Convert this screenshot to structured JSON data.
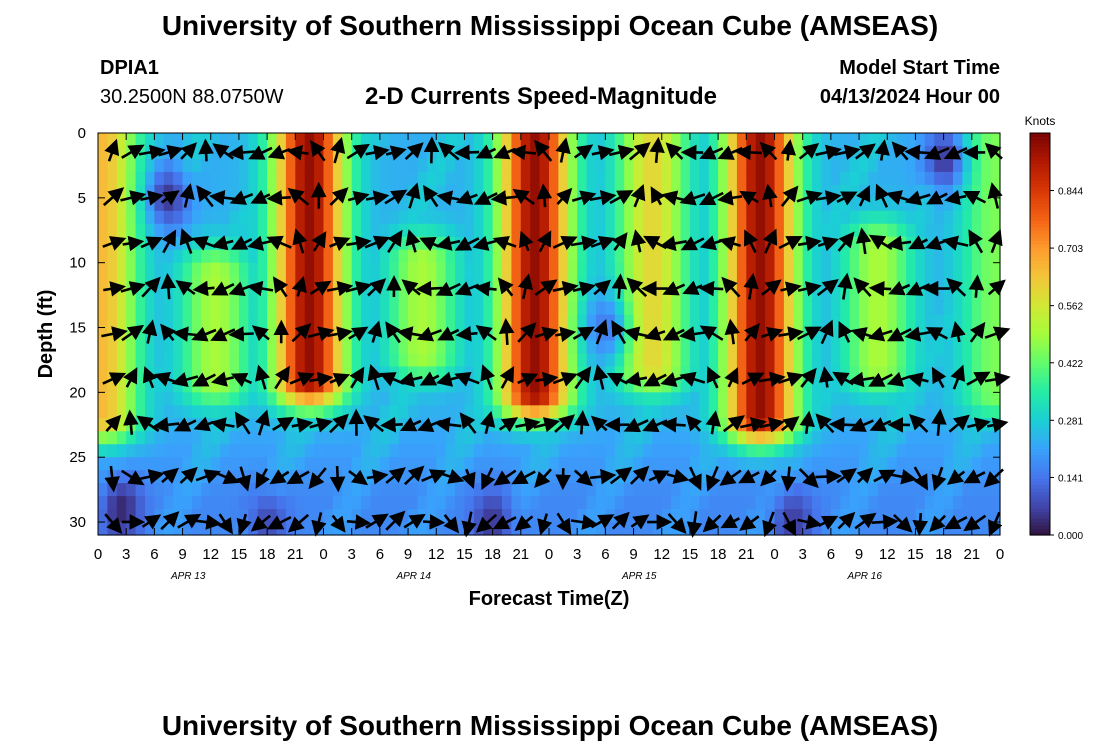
{
  "header": {
    "title": "University of Southern Mississippi Ocean Cube (AMSEAS)",
    "station_id": "DPIA1",
    "station_coords": "30.2500N  88.0750W",
    "plot_title": "2-D Currents Speed-Magnitude",
    "model_start_label": "Model Start Time",
    "model_start_value": "04/13/2024 Hour 00"
  },
  "footer": {
    "title": "University of Southern Mississippi Ocean Cube (AMSEAS)"
  },
  "chart_data": {
    "type": "heatmap",
    "title": "2-D Currents Speed-Magnitude",
    "xlabel": "Forecast Time(Z)",
    "ylabel": "Depth (ft)",
    "x_ticks": [
      "0",
      "3",
      "6",
      "9",
      "12",
      "15",
      "18",
      "21",
      "0",
      "3",
      "6",
      "9",
      "12",
      "15",
      "18",
      "21",
      "0",
      "3",
      "6",
      "9",
      "12",
      "15",
      "18",
      "21",
      "0",
      "3",
      "6",
      "9",
      "12",
      "15",
      "18",
      "21",
      "0"
    ],
    "x_hours": [
      0,
      3,
      6,
      9,
      12,
      15,
      18,
      21,
      24,
      27,
      30,
      33,
      36,
      39,
      42,
      45,
      48,
      51,
      54,
      57,
      60,
      63,
      66,
      69,
      72,
      75,
      78,
      81,
      84,
      87,
      90,
      93,
      96
    ],
    "xlim": [
      0,
      96
    ],
    "date_labels": [
      {
        "text": "APR 13",
        "hour": 9.6
      },
      {
        "text": "APR 14",
        "hour": 33.6
      },
      {
        "text": "APR 15",
        "hour": 57.6
      },
      {
        "text": "APR 16",
        "hour": 81.6
      }
    ],
    "y_ticks": [
      0,
      5,
      10,
      15,
      20,
      25,
      30
    ],
    "ylim": [
      0,
      31
    ],
    "y_inverted": true,
    "colorbar": {
      "label": "Knots",
      "min": 0.0,
      "max": 0.985,
      "tick_values": [
        0.0,
        0.141,
        0.281,
        0.422,
        0.562,
        0.703,
        0.844
      ],
      "tick_labels": [
        "0.000",
        "0.141",
        "0.281",
        "0.422",
        "0.562",
        "0.703",
        "0.844"
      ],
      "colors": [
        "#30123b",
        "#4145ab",
        "#4675ed",
        "#39a2fc",
        "#1bcfd4",
        "#24eca6",
        "#61fc6c",
        "#a4fc3b",
        "#d1e834",
        "#f3c63a",
        "#fe9b2d",
        "#f36315",
        "#d93806",
        "#b11901",
        "#7a0403"
      ]
    },
    "speed_peaks": [
      {
        "hour": 0.5,
        "depth_min": 0,
        "depth_max": 22,
        "speed": 0.65
      },
      {
        "hour": 12.5,
        "depth_min": 11,
        "depth_max": 19,
        "speed": 0.5
      },
      {
        "hour": 22.5,
        "depth_min": 0,
        "depth_max": 19,
        "speed": 0.95
      },
      {
        "hour": 34.5,
        "depth_min": 10,
        "depth_max": 17,
        "speed": 0.5
      },
      {
        "hour": 46.5,
        "depth_min": 0,
        "depth_max": 20,
        "speed": 0.95
      },
      {
        "hour": 59,
        "depth_min": 0,
        "depth_max": 18,
        "speed": 0.6
      },
      {
        "hour": 70.5,
        "depth_min": 0,
        "depth_max": 22,
        "speed": 0.95
      },
      {
        "hour": 83,
        "depth_min": 9,
        "depth_max": 18,
        "speed": 0.5
      },
      {
        "hour": 95.5,
        "depth_min": 0,
        "depth_max": 20,
        "speed": 0.45
      }
    ],
    "speed_lows": [
      {
        "hour": 7.5,
        "depth": 5,
        "speed": 0.05
      },
      {
        "hour": 2.5,
        "depth": 29,
        "speed": 0.03
      },
      {
        "hour": 18,
        "depth": 30,
        "speed": 0.08
      },
      {
        "hour": 42,
        "depth": 30,
        "speed": 0.05
      },
      {
        "hour": 90,
        "depth": 2,
        "speed": 0.05
      },
      {
        "hour": 74,
        "depth": 30,
        "speed": 0.06
      },
      {
        "hour": 54,
        "depth": 15,
        "speed": 0.15
      }
    ]
  }
}
